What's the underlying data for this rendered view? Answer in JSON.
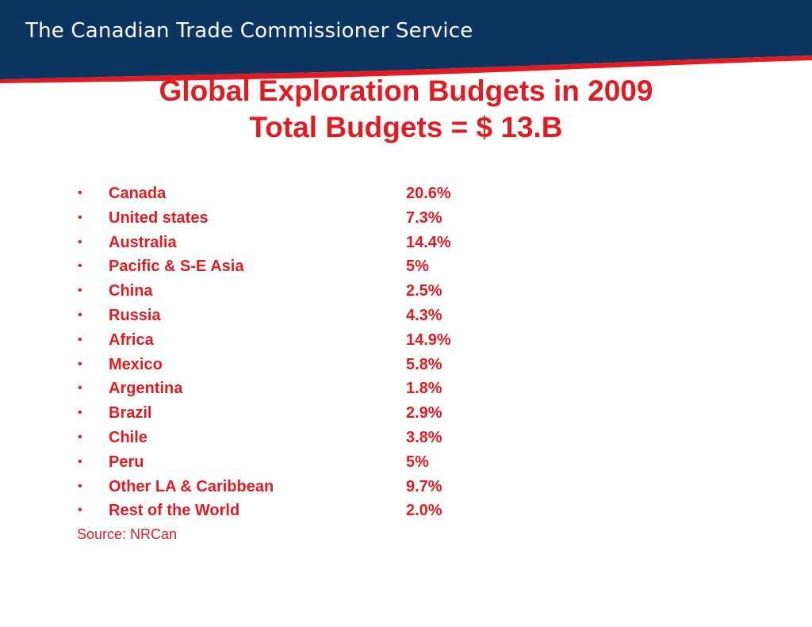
{
  "banner": {
    "title": "The Canadian Trade Commissioner Service",
    "background_color": "#0c3561",
    "accent_color": "#e11b22"
  },
  "slide": {
    "title_line1": "Global Exploration Budgets in 2009",
    "title_line2": "Total Budgets = $ 13.B",
    "text_color": "#e11b22",
    "bullet_glyph": "•",
    "items": [
      {
        "region": "Canada",
        "share": "20.6%"
      },
      {
        "region": "United states",
        "share": "7.3%"
      },
      {
        "region": "Australia",
        "share": "14.4%"
      },
      {
        "region": "Pacific & S-E Asia",
        "share": "5%"
      },
      {
        "region": "China",
        "share": "2.5%"
      },
      {
        "region": "Russia",
        "share": "4.3%"
      },
      {
        "region": "Africa",
        "share": "14.9%"
      },
      {
        "region": "Mexico",
        "share": "5.8%"
      },
      {
        "region": "Argentina",
        "share": "1.8%"
      },
      {
        "region": "Brazil",
        "share": "2.9%"
      },
      {
        "region": "Chile",
        "share": "3.8%"
      },
      {
        "region": "Peru",
        "share": "5%"
      },
      {
        "region": "Other LA & Caribbean",
        "share": "9.7%"
      },
      {
        "region": "Rest of the World",
        "share": "2.0%"
      }
    ],
    "source": "Source: NRCan"
  }
}
